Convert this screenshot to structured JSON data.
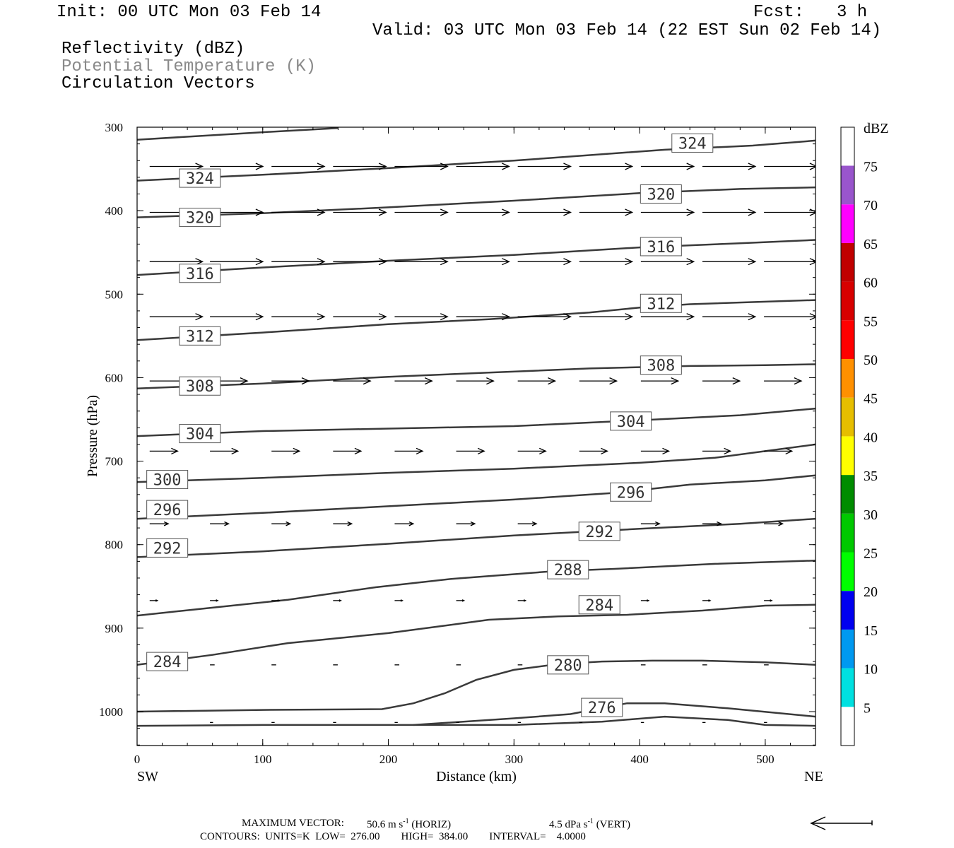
{
  "header": {
    "init": "Init: 00 UTC Mon 03 Feb 14",
    "fcst_label": "Fcst:",
    "fcst_value": "3 h",
    "valid": "Valid: 03 UTC Mon 03 Feb 14 (22 EST Sun 02 Feb 14)",
    "field1": "Reflectivity (dBZ)",
    "field2": "Potential Temperature (K)",
    "field3": "Circulation Vectors"
  },
  "chart_data": {
    "type": "cross-section",
    "xlabel": "Distance (km)",
    "ylabel": "Pressure (hPa)",
    "x_left_label": "SW",
    "x_right_label": "NE",
    "xlim": [
      0,
      540
    ],
    "ylim": [
      1040,
      300
    ],
    "y_ticks": [
      300,
      400,
      500,
      600,
      700,
      800,
      900,
      1000
    ],
    "x_ticks": [
      0,
      100,
      200,
      300,
      400,
      500
    ],
    "contours": [
      {
        "value": 276,
        "label": "276",
        "label_pos": [
          370,
          995
        ],
        "points": [
          [
            220,
            1016
          ],
          [
            300,
            1008
          ],
          [
            345,
            1003
          ],
          [
            390,
            990
          ],
          [
            420,
            990
          ],
          [
            470,
            996
          ],
          [
            540,
            1006
          ]
        ]
      },
      {
        "value": "",
        "label": "",
        "points": [
          [
            0,
            1017
          ],
          [
            100,
            1016
          ],
          [
            300,
            1016
          ],
          [
            370,
            1012
          ],
          [
            420,
            1006
          ],
          [
            470,
            1010
          ],
          [
            500,
            1016
          ],
          [
            540,
            1017
          ]
        ]
      },
      {
        "value": 280,
        "label": "280",
        "label_pos": [
          343,
          944
        ],
        "points": [
          [
            0,
            1000
          ],
          [
            100,
            998
          ],
          [
            195,
            997
          ],
          [
            220,
            990
          ],
          [
            245,
            978
          ],
          [
            270,
            962
          ],
          [
            300,
            950
          ],
          [
            335,
            943
          ],
          [
            370,
            940
          ],
          [
            410,
            939
          ],
          [
            450,
            939
          ],
          [
            500,
            941
          ],
          [
            540,
            944
          ]
        ]
      },
      {
        "value": 284,
        "label": "284",
        "label_pos": [
          24,
          940
        ],
        "points": [
          [
            0,
            944
          ],
          [
            60,
            932
          ],
          [
            120,
            918
          ],
          [
            200,
            906
          ],
          [
            240,
            898
          ],
          [
            280,
            890
          ],
          [
            335,
            886
          ],
          [
            390,
            884
          ],
          [
            450,
            879
          ],
          [
            500,
            873
          ],
          [
            540,
            872
          ]
        ]
      },
      {
        "value": 284,
        "label": "284",
        "label_pos": [
          368,
          872
        ],
        "points": []
      },
      {
        "value": 288,
        "label": "288",
        "label_pos": [
          343,
          830
        ],
        "points": [
          [
            0,
            885
          ],
          [
            50,
            877
          ],
          [
            120,
            866
          ],
          [
            190,
            851
          ],
          [
            250,
            841
          ],
          [
            330,
            832
          ],
          [
            380,
            829
          ],
          [
            460,
            823
          ],
          [
            540,
            819
          ]
        ]
      },
      {
        "value": 292,
        "label": "292",
        "label_pos": [
          24,
          804
        ],
        "points": [
          [
            0,
            815
          ],
          [
            100,
            808
          ],
          [
            200,
            799
          ],
          [
            300,
            789
          ],
          [
            400,
            781
          ],
          [
            480,
            775
          ],
          [
            540,
            769
          ]
        ]
      },
      {
        "value": 292,
        "label": "292",
        "label_pos": [
          368,
          784
        ],
        "points": []
      },
      {
        "value": 296,
        "label": "296",
        "label_pos": [
          24,
          758
        ],
        "points": [
          [
            0,
            769
          ],
          [
            100,
            762
          ],
          [
            200,
            754
          ],
          [
            300,
            746
          ],
          [
            380,
            738
          ],
          [
            440,
            728
          ],
          [
            500,
            723
          ],
          [
            540,
            717
          ]
        ]
      },
      {
        "value": 296,
        "label": "296",
        "label_pos": [
          393,
          737
        ],
        "points": []
      },
      {
        "value": 300,
        "label": "300",
        "label_pos": [
          24,
          722
        ],
        "points": [
          [
            0,
            725
          ],
          [
            100,
            720
          ],
          [
            200,
            714
          ],
          [
            300,
            709
          ],
          [
            400,
            702
          ],
          [
            460,
            696
          ],
          [
            540,
            680
          ]
        ]
      },
      {
        "value": 304,
        "label": "304",
        "label_pos": [
          50,
          667
        ],
        "points": [
          [
            0,
            670
          ],
          [
            100,
            664
          ],
          [
            200,
            661
          ],
          [
            300,
            658
          ],
          [
            400,
            651
          ],
          [
            480,
            645
          ],
          [
            540,
            637
          ]
        ]
      },
      {
        "value": 304,
        "label": "304",
        "label_pos": [
          393,
          652
        ],
        "points": []
      },
      {
        "value": 308,
        "label": "308",
        "label_pos": [
          50,
          610
        ],
        "points": [
          [
            0,
            613
          ],
          [
            100,
            607
          ],
          [
            200,
            599
          ],
          [
            280,
            594
          ],
          [
            360,
            589
          ],
          [
            440,
            586
          ],
          [
            500,
            585
          ],
          [
            540,
            584
          ]
        ]
      },
      {
        "value": 308,
        "label": "308",
        "label_pos": [
          417,
          585
        ],
        "points": []
      },
      {
        "value": 312,
        "label": "312",
        "label_pos": [
          50,
          550
        ],
        "points": [
          [
            0,
            555
          ],
          [
            100,
            546
          ],
          [
            200,
            536
          ],
          [
            280,
            530
          ],
          [
            360,
            522
          ],
          [
            400,
            516
          ],
          [
            440,
            512
          ],
          [
            540,
            507
          ]
        ]
      },
      {
        "value": 312,
        "label": "312",
        "label_pos": [
          417,
          511
        ],
        "points": []
      },
      {
        "value": 316,
        "label": "316",
        "label_pos": [
          50,
          475
        ],
        "points": [
          [
            0,
            477
          ],
          [
            100,
            468
          ],
          [
            200,
            460
          ],
          [
            300,
            453
          ],
          [
            400,
            444
          ],
          [
            480,
            439
          ],
          [
            540,
            435
          ]
        ]
      },
      {
        "value": 316,
        "label": "316",
        "label_pos": [
          417,
          443
        ],
        "points": []
      },
      {
        "value": 320,
        "label": "320",
        "label_pos": [
          50,
          408
        ],
        "points": [
          [
            0,
            408
          ],
          [
            100,
            403
          ],
          [
            200,
            396
          ],
          [
            300,
            388
          ],
          [
            400,
            379
          ],
          [
            480,
            374
          ],
          [
            540,
            372
          ]
        ]
      },
      {
        "value": 320,
        "label": "320",
        "label_pos": [
          417,
          380
        ],
        "points": []
      },
      {
        "value": 324,
        "label": "324",
        "label_pos": [
          50,
          361
        ],
        "points": [
          [
            0,
            364
          ],
          [
            100,
            357
          ],
          [
            200,
            349
          ],
          [
            300,
            340
          ],
          [
            420,
            327
          ],
          [
            490,
            322
          ],
          [
            540,
            316
          ]
        ]
      },
      {
        "value": 324,
        "label": "324",
        "label_pos": [
          442,
          319
        ],
        "points": []
      },
      {
        "value": "",
        "label": "",
        "points": [
          [
            0,
            315
          ],
          [
            100,
            306
          ],
          [
            160,
            301
          ]
        ]
      }
    ],
    "vectors": [
      {
        "p": 347,
        "len": 34,
        "xs": [
          10,
          58,
          107,
          156,
          205,
          254,
          303,
          352,
          401,
          450,
          499,
          540
        ]
      },
      {
        "p": 402,
        "len": 34,
        "xs": [
          10,
          58,
          107,
          156,
          205,
          254,
          303,
          352,
          401,
          450,
          499,
          540
        ]
      },
      {
        "p": 461,
        "len": 34,
        "xs": [
          10,
          58,
          107,
          156,
          205,
          254,
          303,
          352,
          401,
          450,
          499,
          540
        ]
      },
      {
        "p": 527,
        "len": 34,
        "xs": [
          10,
          58,
          107,
          156,
          205,
          254,
          303,
          352,
          401,
          450,
          499
        ]
      },
      {
        "p": 604,
        "len": 24,
        "xs": [
          10,
          58,
          107,
          156,
          205,
          254,
          303,
          352,
          401,
          450,
          499
        ]
      },
      {
        "p": 688,
        "len": 18,
        "xs": [
          10,
          58,
          107,
          156,
          205,
          254,
          303,
          352,
          401,
          450,
          499
        ]
      },
      {
        "p": 775,
        "len": 12,
        "xs": [
          10,
          58,
          107,
          156,
          205,
          254,
          303,
          352,
          401,
          450,
          499
        ]
      },
      {
        "p": 867,
        "len": 5,
        "xs": [
          10,
          58,
          107,
          156,
          205,
          254,
          303,
          352,
          401,
          450,
          499
        ]
      },
      {
        "p": 944,
        "len": 3,
        "xs": [
          10,
          58,
          107,
          156,
          205,
          254,
          303,
          352,
          401,
          450,
          499
        ]
      },
      {
        "p": 1013,
        "len": 2,
        "xs": [
          58,
          107,
          156,
          205,
          254,
          303,
          352,
          401,
          450,
          499
        ]
      }
    ],
    "colorbar": {
      "title": "dBZ",
      "levels": [
        {
          "label": "5",
          "color": "#00e0e0"
        },
        {
          "label": "10",
          "color": "#0099f0"
        },
        {
          "label": "15",
          "color": "#0000f0"
        },
        {
          "label": "20",
          "color": "#00ff00"
        },
        {
          "label": "25",
          "color": "#00c800"
        },
        {
          "label": "30",
          "color": "#008c00"
        },
        {
          "label": "35",
          "color": "#ffff00"
        },
        {
          "label": "40",
          "color": "#e6be00"
        },
        {
          "label": "45",
          "color": "#ff9000"
        },
        {
          "label": "50",
          "color": "#ff0000"
        },
        {
          "label": "55",
          "color": "#d70000"
        },
        {
          "label": "60",
          "color": "#c00000"
        },
        {
          "label": "65",
          "color": "#ff00ff"
        },
        {
          "label": "70",
          "color": "#9955cc"
        },
        {
          "label": "75",
          "color": "#ffffff"
        }
      ]
    }
  },
  "footer": {
    "max_vector_label": "MAXIMUM VECTOR:",
    "horiz_value": "50.6 m s",
    "horiz_unit": "(HORIZ)",
    "vert_value": "4.5 dPa s",
    "vert_unit": "(VERT)",
    "exp": "-1",
    "contours_line": "CONTOURS:  UNITS=K  LOW=  276.00        HIGH=  384.00        INTERVAL=    4.0000"
  }
}
